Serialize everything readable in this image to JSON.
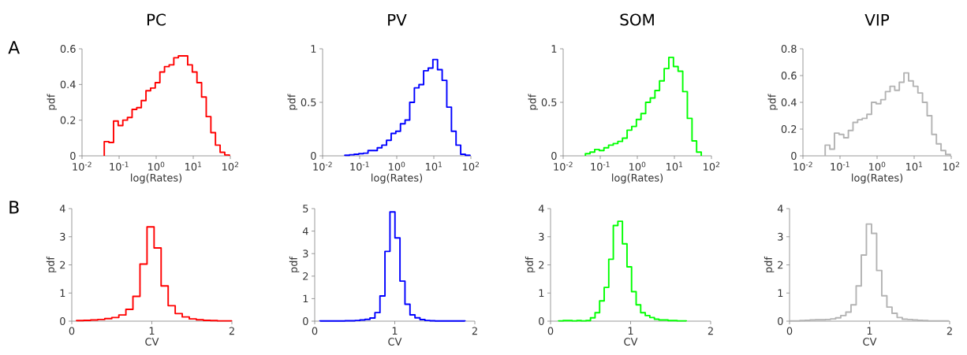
{
  "chart_data": [
    {
      "type": "histogram",
      "title": "PC",
      "xlabel": "log(Rates)",
      "ylabel": "pdf",
      "annotations": [
        "A"
      ],
      "color": "#ff0000",
      "log": "x",
      "xlim": [
        0.01,
        100
      ],
      "xticks": [
        {
          "value": 0.01,
          "label": "10$^{-2}$"
        },
        {
          "value": 0.1,
          "label": "10$^{-1}$"
        },
        {
          "value": 1,
          "label": "10$^{0}$"
        },
        {
          "value": 10,
          "label": "10$^{1}$"
        },
        {
          "value": 100,
          "label": "10$^{2}$"
        }
      ],
      "ylim": [
        0,
        0.6
      ],
      "yticks": [
        0,
        0.2,
        0.4,
        0.6
      ],
      "bins": [
        0.0398,
        0.0531,
        0.0708,
        0.0944,
        0.126,
        0.168,
        0.224,
        0.299,
        0.398,
        0.531,
        0.708,
        0.944,
        1.26,
        1.68,
        2.24,
        2.99,
        3.98,
        5.31,
        7.08,
        9.44,
        12.6,
        16.8,
        22.4,
        29.9,
        39.8,
        53.1,
        70.8,
        94.4
      ],
      "values": [
        0.08,
        0.075,
        0.195,
        0.17,
        0.2,
        0.215,
        0.26,
        0.27,
        0.31,
        0.365,
        0.38,
        0.41,
        0.47,
        0.5,
        0.51,
        0.55,
        0.56,
        0.56,
        0.51,
        0.47,
        0.41,
        0.33,
        0.22,
        0.13,
        0.06,
        0.02,
        0.005
      ]
    },
    {
      "type": "histogram",
      "title": "PV",
      "xlabel": "log(Rates)",
      "ylabel": "pdf",
      "color": "#0000ff",
      "log": "x",
      "xlim": [
        0.01,
        100
      ],
      "xticks": [
        {
          "value": 0.01,
          "label": "10$^{-2}$"
        },
        {
          "value": 0.1,
          "label": "10$^{-1}$"
        },
        {
          "value": 1,
          "label": "10$^{0}$"
        },
        {
          "value": 10,
          "label": "10$^{1}$"
        },
        {
          "value": 100,
          "label": "10$^{2}$"
        }
      ],
      "ylim": [
        0,
        1
      ],
      "yticks": [
        0,
        0.5,
        1
      ],
      "bins": [
        0.0398,
        0.0531,
        0.0708,
        0.0944,
        0.126,
        0.168,
        0.224,
        0.299,
        0.398,
        0.531,
        0.708,
        0.944,
        1.26,
        1.68,
        2.24,
        2.99,
        3.98,
        5.31,
        7.08,
        9.44,
        12.6,
        16.8,
        22.4,
        29.9,
        39.8,
        53.1,
        70.8,
        94.4
      ],
      "values": [
        0.005,
        0.01,
        0.015,
        0.02,
        0.025,
        0.05,
        0.05,
        0.075,
        0.1,
        0.145,
        0.21,
        0.23,
        0.3,
        0.335,
        0.5,
        0.635,
        0.665,
        0.795,
        0.82,
        0.9,
        0.805,
        0.705,
        0.455,
        0.23,
        0.1,
        0.015,
        0.005
      ]
    },
    {
      "type": "histogram",
      "title": "SOM",
      "xlabel": "log(Rates)",
      "ylabel": "pdf",
      "color": "#00ff00",
      "log": "x",
      "xlim": [
        0.01,
        100
      ],
      "xticks": [
        {
          "value": 0.01,
          "label": "10$^{-2}$"
        },
        {
          "value": 0.1,
          "label": "10$^{-1}$"
        },
        {
          "value": 1,
          "label": "10$^{0}$"
        },
        {
          "value": 10,
          "label": "10$^{1}$"
        },
        {
          "value": 100,
          "label": "10$^{2}$"
        }
      ],
      "ylim": [
        0,
        1
      ],
      "yticks": [
        0,
        0.5,
        1
      ],
      "bins": [
        0.0398,
        0.0531,
        0.0708,
        0.0944,
        0.126,
        0.168,
        0.224,
        0.299,
        0.398,
        0.531,
        0.708,
        0.944,
        1.26,
        1.68,
        2.24,
        2.99,
        3.98,
        5.31,
        7.08,
        9.44,
        12.6,
        16.8,
        22.4,
        29.9,
        39.8,
        53.1
      ],
      "values": [
        0.02,
        0.035,
        0.06,
        0.05,
        0.075,
        0.1,
        0.115,
        0.135,
        0.165,
        0.24,
        0.275,
        0.34,
        0.395,
        0.5,
        0.54,
        0.61,
        0.7,
        0.815,
        0.92,
        0.835,
        0.79,
        0.6,
        0.35,
        0.14,
        0.035
      ]
    },
    {
      "type": "histogram",
      "title": "VIP",
      "xlabel": "log(Rates)",
      "ylabel": "pdf",
      "color": "#b3b3b3",
      "log": "x",
      "xlim": [
        0.01,
        100
      ],
      "xticks": [
        {
          "value": 0.01,
          "label": "10$^{-2}$"
        },
        {
          "value": 0.1,
          "label": "10$^{-1}$"
        },
        {
          "value": 1,
          "label": "10$^{0}$"
        },
        {
          "value": 10,
          "label": "10$^{1}$"
        },
        {
          "value": 100,
          "label": "10$^{2}$"
        }
      ],
      "ylim": [
        0,
        0.8
      ],
      "yticks": [
        0,
        0.2,
        0.4,
        0.6,
        0.8
      ],
      "bins": [
        0.0398,
        0.0531,
        0.0708,
        0.0944,
        0.126,
        0.168,
        0.224,
        0.299,
        0.398,
        0.531,
        0.708,
        0.944,
        1.26,
        1.68,
        2.24,
        2.99,
        3.98,
        5.31,
        7.08,
        9.44,
        12.6,
        16.8,
        22.4,
        29.9,
        39.8,
        53.1,
        70.8,
        94.4
      ],
      "values": [
        0.08,
        0.05,
        0.17,
        0.16,
        0.135,
        0.19,
        0.25,
        0.27,
        0.28,
        0.31,
        0.4,
        0.39,
        0.42,
        0.48,
        0.52,
        0.49,
        0.55,
        0.62,
        0.56,
        0.52,
        0.47,
        0.4,
        0.3,
        0.16,
        0.09,
        0.04,
        0.01
      ]
    },
    {
      "type": "histogram",
      "xlabel": "CV",
      "ylabel": "pdf",
      "annotations": [
        "B"
      ],
      "color": "#ff0000",
      "xlim": [
        0,
        2
      ],
      "xticks": [
        0,
        1,
        2
      ],
      "ylim": [
        0,
        4
      ],
      "yticks": [
        0,
        1,
        2,
        3,
        4
      ],
      "bins": [
        0.06,
        0.148,
        0.236,
        0.324,
        0.412,
        0.5,
        0.588,
        0.676,
        0.764,
        0.852,
        0.94,
        1.028,
        1.116,
        1.204,
        1.292,
        1.38,
        1.468,
        1.556,
        1.644,
        1.732,
        1.82,
        1.908,
        1.996
      ],
      "values": [
        0.02,
        0.03,
        0.04,
        0.06,
        0.09,
        0.13,
        0.22,
        0.42,
        0.88,
        2.03,
        3.35,
        2.6,
        1.25,
        0.55,
        0.27,
        0.15,
        0.08,
        0.05,
        0.03,
        0.02,
        0.01,
        0.01
      ]
    },
    {
      "type": "histogram",
      "xlabel": "CV",
      "ylabel": "pdf",
      "color": "#0000ff",
      "xlim": [
        0,
        2
      ],
      "xticks": [
        0,
        1,
        2
      ],
      "ylim": [
        0,
        5
      ],
      "yticks": [
        0,
        1,
        2,
        3,
        4,
        5
      ],
      "bins": [
        0.065,
        0.1275,
        0.19,
        0.2525,
        0.315,
        0.3775,
        0.44,
        0.5025,
        0.565,
        0.6275,
        0.69,
        0.7525,
        0.815,
        0.8775,
        0.94,
        1.0025,
        1.065,
        1.1275,
        1.19,
        1.2525,
        1.315,
        1.3775,
        1.44,
        1.5025,
        1.565,
        1.6275,
        1.69,
        1.7525,
        1.815,
        1.8775
      ],
      "values": [
        0.01,
        0.01,
        0.01,
        0.01,
        0.01,
        0.02,
        0.02,
        0.03,
        0.05,
        0.08,
        0.14,
        0.38,
        1.12,
        3.1,
        4.85,
        3.7,
        1.78,
        0.75,
        0.28,
        0.15,
        0.07,
        0.03,
        0.02,
        0.01,
        0.01,
        0.01,
        0.01,
        0.01,
        0.01
      ]
    },
    {
      "type": "histogram",
      "xlabel": "CV",
      "ylabel": "pdf",
      "color": "#00ff00",
      "xlim": [
        0,
        2
      ],
      "xticks": [
        0,
        1,
        2
      ],
      "ylim": [
        0,
        4
      ],
      "yticks": [
        0,
        1,
        2,
        3,
        4
      ],
      "bins": [
        0.1,
        0.157,
        0.214,
        0.271,
        0.328,
        0.385,
        0.442,
        0.499,
        0.556,
        0.613,
        0.67,
        0.727,
        0.784,
        0.841,
        0.898,
        0.955,
        1.012,
        1.069,
        1.126,
        1.183,
        1.24,
        1.297,
        1.354,
        1.411,
        1.468,
        1.525,
        1.582,
        1.639,
        1.696
      ],
      "values": [
        0.01,
        0.02,
        0.02,
        0.01,
        0.02,
        0.01,
        0.02,
        0.12,
        0.3,
        0.72,
        1.2,
        2.2,
        3.4,
        3.55,
        2.75,
        1.93,
        1.05,
        0.58,
        0.3,
        0.2,
        0.13,
        0.07,
        0.04,
        0.04,
        0.02,
        0.02,
        0.01,
        0.01
      ]
    },
    {
      "type": "histogram",
      "xlabel": "CV",
      "ylabel": "pdf",
      "color": "#b3b3b3",
      "xlim": [
        0,
        2
      ],
      "xticks": [
        0,
        1,
        2
      ],
      "ylim": [
        0,
        4
      ],
      "yticks": [
        0,
        1,
        2,
        3,
        4
      ],
      "bins": [
        0,
        0.064,
        0.128,
        0.192,
        0.256,
        0.32,
        0.384,
        0.448,
        0.512,
        0.576,
        0.64,
        0.704,
        0.768,
        0.832,
        0.896,
        0.96,
        1.024,
        1.088,
        1.152,
        1.216,
        1.28,
        1.344,
        1.408,
        1.472,
        1.536,
        1.6,
        1.664,
        1.728,
        1.792,
        1.856,
        1.92,
        1.984
      ],
      "values": [
        0.01,
        0.01,
        0.02,
        0.03,
        0.04,
        0.05,
        0.05,
        0.06,
        0.08,
        0.12,
        0.2,
        0.32,
        0.58,
        1.25,
        2.35,
        3.45,
        3.12,
        1.8,
        0.9,
        0.5,
        0.28,
        0.13,
        0.07,
        0.06,
        0.04,
        0.03,
        0.02,
        0.01,
        0.01,
        0.01,
        0.01
      ]
    }
  ]
}
